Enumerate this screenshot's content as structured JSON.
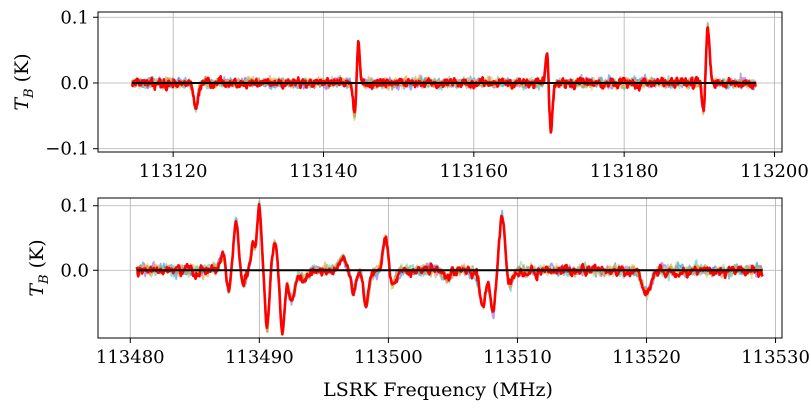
{
  "chart_data": [
    {
      "type": "line",
      "ylabel": "T_B (K)",
      "ylabel_main": "T",
      "ylabel_sub": "B",
      "ylabel_unit": "(K)",
      "xlabel": "",
      "xlim": [
        113110,
        113201
      ],
      "ylim": [
        -0.105,
        0.108
      ],
      "x_range": [
        113114.5,
        113197.5
      ],
      "xticks": [
        113120,
        113140,
        113160,
        113180,
        113200
      ],
      "xtick_labels": [
        "113120",
        "113140",
        "113160",
        "113180",
        "113200"
      ],
      "yticks": [
        -0.1,
        0.0,
        0.1
      ],
      "ytick_labels": [
        "−0.1",
        "0.0",
        "0.1"
      ],
      "grid": true,
      "baseline": 0.0,
      "features": [
        {
          "x": 113123.0,
          "amp": -0.038,
          "width": 0.28
        },
        {
          "x": 113144.2,
          "amp": -0.06,
          "width": 0.22
        },
        {
          "x": 113144.6,
          "amp": 0.068,
          "width": 0.22
        },
        {
          "x": 113169.8,
          "amp": 0.05,
          "width": 0.22
        },
        {
          "x": 113170.2,
          "amp": -0.08,
          "width": 0.22
        },
        {
          "x": 113190.6,
          "amp": -0.05,
          "width": 0.22
        },
        {
          "x": 113191.1,
          "amp": 0.09,
          "width": 0.24
        }
      ],
      "noise": 0.004,
      "series": [
        {
          "color": "#8a3ffc",
          "seed": 11
        },
        {
          "color": "#1f77ff",
          "seed": 23
        },
        {
          "color": "#2ec4b6",
          "seed": 37
        },
        {
          "color": "#7bd389",
          "seed": 41
        },
        {
          "color": "#f2c14e",
          "seed": 53
        },
        {
          "color": "#f28e2b",
          "seed": 67
        },
        {
          "color": "#ff0000",
          "seed": 79
        }
      ]
    },
    {
      "type": "line",
      "ylabel": "T_B (K)",
      "ylabel_main": "T",
      "ylabel_sub": "B",
      "ylabel_unit": "(K)",
      "xlabel": "LSRK Frequency (MHz)",
      "xlim": [
        113477.5,
        113530.5
      ],
      "ylim": [
        -0.105,
        0.112
      ],
      "x_range": [
        113480.5,
        113529.0
      ],
      "xticks": [
        113480,
        113490,
        113500,
        113510,
        113520,
        113530
      ],
      "xtick_labels": [
        "113480",
        "113490",
        "113500",
        "113510",
        "113520",
        "113530"
      ],
      "yticks": [
        0.0,
        0.1
      ],
      "ytick_labels": [
        "0.0",
        "0.1"
      ],
      "grid": true,
      "baseline": 0.0,
      "features": [
        {
          "x": 113487.2,
          "amp": 0.022,
          "width": 0.3
        },
        {
          "x": 113487.6,
          "amp": -0.04,
          "width": 0.16
        },
        {
          "x": 113488.2,
          "amp": 0.078,
          "width": 0.18
        },
        {
          "x": 113488.8,
          "amp": -0.025,
          "width": 0.18
        },
        {
          "x": 113489.5,
          "amp": 0.04,
          "width": 0.16
        },
        {
          "x": 113490.0,
          "amp": 0.098,
          "width": 0.17
        },
        {
          "x": 113490.6,
          "amp": -0.092,
          "width": 0.16
        },
        {
          "x": 113491.2,
          "amp": 0.045,
          "width": 0.16
        },
        {
          "x": 113491.8,
          "amp": -0.095,
          "width": 0.17
        },
        {
          "x": 113492.5,
          "amp": -0.045,
          "width": 0.25
        },
        {
          "x": 113493.5,
          "amp": -0.015,
          "width": 0.3
        },
        {
          "x": 113496.5,
          "amp": 0.018,
          "width": 0.3
        },
        {
          "x": 113497.3,
          "amp": -0.03,
          "width": 0.22
        },
        {
          "x": 113498.3,
          "amp": -0.055,
          "width": 0.2
        },
        {
          "x": 113499.8,
          "amp": 0.048,
          "width": 0.2
        },
        {
          "x": 113500.3,
          "amp": -0.025,
          "width": 0.2
        },
        {
          "x": 113504.5,
          "amp": -0.012,
          "width": 0.3
        },
        {
          "x": 113507.3,
          "amp": -0.055,
          "width": 0.25
        },
        {
          "x": 113508.1,
          "amp": -0.065,
          "width": 0.2
        },
        {
          "x": 113508.8,
          "amp": 0.085,
          "width": 0.2
        },
        {
          "x": 113509.4,
          "amp": -0.02,
          "width": 0.2
        },
        {
          "x": 113520.0,
          "amp": -0.035,
          "width": 0.35
        }
      ],
      "noise": 0.005,
      "series": [
        {
          "color": "#8a3ffc",
          "seed": 101
        },
        {
          "color": "#1f77ff",
          "seed": 113
        },
        {
          "color": "#2ec4b6",
          "seed": 127
        },
        {
          "color": "#7bd389",
          "seed": 131
        },
        {
          "color": "#f2c14e",
          "seed": 149
        },
        {
          "color": "#f28e2b",
          "seed": 157
        },
        {
          "color": "#ff0000",
          "seed": 163
        }
      ]
    }
  ],
  "colors": {
    "axes": "#000000",
    "grid": "#b0b0b0",
    "baseline": "#000000",
    "highlight": "#ff0000"
  }
}
